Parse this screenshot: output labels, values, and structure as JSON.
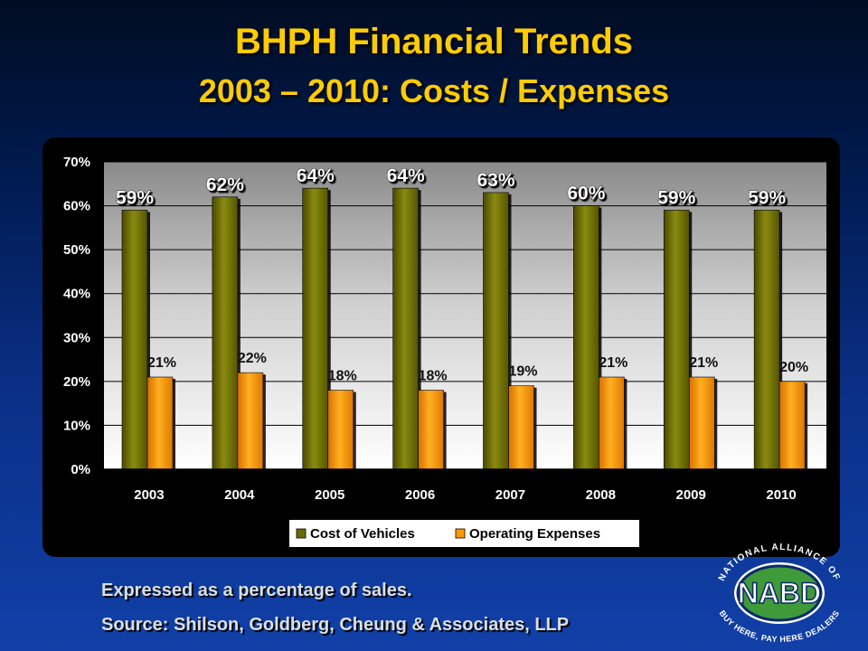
{
  "slide": {
    "title_line1": "BHPH Financial Trends",
    "title_line2": "2003 – 2010: Costs / Expenses",
    "footnote": "Expressed as a percentage of sales.",
    "source": "Source: Shilson, Goldberg, Cheung & Associates, LLP"
  },
  "logo": {
    "name": "nabd-logo",
    "text_main": "NABD",
    "text_top": "NATIONAL ALLIANCE OF",
    "text_bottom": "BUY HERE, PAY HERE DEALERS",
    "green": "#3f9a3a",
    "navy": "#0b2a6b"
  },
  "chart_data": {
    "type": "bar",
    "categories": [
      "2003",
      "2004",
      "2005",
      "2006",
      "2007",
      "2008",
      "2009",
      "2010"
    ],
    "series": [
      {
        "name": "Cost of Vehicles",
        "values": [
          59,
          62,
          64,
          64,
          63,
          60,
          59,
          59
        ],
        "labels": [
          "59%",
          "62%",
          "64%",
          "64%",
          "63%",
          "60%",
          "59%",
          "59%"
        ],
        "color": "#6b6b00"
      },
      {
        "name": "Operating Expenses",
        "values": [
          21,
          22,
          18,
          18,
          19,
          21,
          21,
          20
        ],
        "labels": [
          "21%",
          "22%",
          "18%",
          "18%",
          "19%",
          "21%",
          "21%",
          "20%"
        ],
        "color": "#ff9900"
      }
    ],
    "ylim": [
      0,
      70
    ],
    "yticks": [
      "0%",
      "10%",
      "20%",
      "30%",
      "40%",
      "50%",
      "60%",
      "70%"
    ],
    "grid": true,
    "legend": "bottom"
  }
}
